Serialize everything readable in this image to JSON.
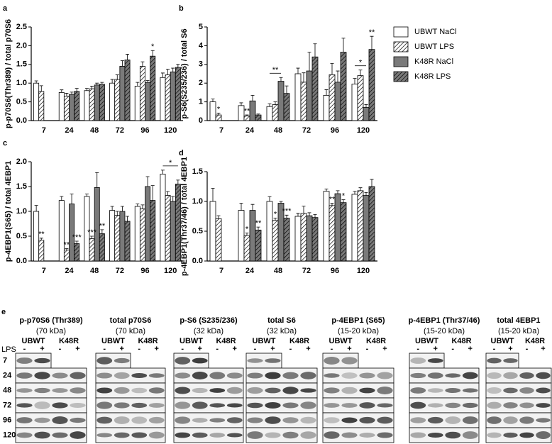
{
  "chart_data": [
    {
      "type": "bar",
      "label": "a",
      "y_label": "p-p70S6(Thr389) / total p70S6",
      "categories": [
        "7",
        "24",
        "48",
        "72",
        "96",
        "120"
      ],
      "series": [
        {
          "name": "UBWT NaCl",
          "color": "#ffffff",
          "hatch": false,
          "values": [
            1.0,
            0.75,
            0.8,
            1.0,
            0.92,
            1.15
          ],
          "errors": [
            0.06,
            0.07,
            0.06,
            0.1,
            0.1,
            0.12
          ]
        },
        {
          "name": "UBWT LPS",
          "color": "#ffffff",
          "hatch": true,
          "values": [
            0.78,
            0.65,
            0.85,
            1.1,
            1.45,
            1.22
          ],
          "errors": [
            0.15,
            0.08,
            0.07,
            0.12,
            0.12,
            0.15
          ]
        },
        {
          "name": "K48R NaCl",
          "color": "#7a7a7a",
          "hatch": false,
          "values": [
            null,
            0.7,
            0.95,
            1.45,
            1.02,
            1.3
          ],
          "errors": [
            null,
            0.06,
            0.05,
            0.15,
            0.05,
            0.1
          ]
        },
        {
          "name": "K48R LPS",
          "color": "#7a7a7a",
          "hatch": true,
          "values": [
            null,
            0.78,
            0.97,
            1.62,
            1.72,
            1.42
          ],
          "errors": [
            null,
            0.08,
            0.05,
            0.15,
            0.15,
            0.08
          ]
        }
      ],
      "ylim": [
        0,
        2.5
      ],
      "yticks": [
        {
          "value": 0,
          "label": "0.0"
        },
        0.5,
        {
          "value": 1,
          "label": "1.0"
        },
        1.5,
        {
          "value": 2,
          "label": "2.0"
        },
        2.5
      ],
      "annotations": [
        {
          "text": "*",
          "category": "96",
          "series": [
            "K48R LPS"
          ]
        }
      ]
    },
    {
      "type": "bar",
      "label": "b",
      "y_label": "p-S6(S235/236) / total S6",
      "legend": "right",
      "categories": [
        "7",
        "24",
        "48",
        "72",
        "96",
        "120"
      ],
      "series": [
        {
          "name": "UBWT NaCl",
          "color": "#ffffff",
          "hatch": false,
          "values": [
            1.0,
            0.8,
            0.75,
            2.5,
            1.35,
            1.95
          ],
          "errors": [
            0.15,
            0.15,
            0.15,
            0.3,
            0.3,
            0.3
          ]
        },
        {
          "name": "UBWT LPS",
          "color": "#ffffff",
          "hatch": true,
          "values": [
            0.3,
            0.25,
            0.85,
            2.05,
            2.45,
            2.4
          ],
          "errors": [
            0.1,
            0.05,
            0.15,
            0.5,
            0.6,
            0.3
          ]
        },
        {
          "name": "K48R NaCl",
          "color": "#7a7a7a",
          "hatch": false,
          "values": [
            null,
            1.05,
            2.1,
            2.65,
            2.05,
            0.7
          ],
          "errors": [
            null,
            0.3,
            0.2,
            1.0,
            0.6,
            0.15
          ]
        },
        {
          "name": "K48R LPS",
          "color": "#7a7a7a",
          "hatch": true,
          "values": [
            null,
            0.3,
            1.45,
            3.4,
            3.65,
            3.8
          ],
          "errors": [
            null,
            0.05,
            0.4,
            0.7,
            0.75,
            0.7
          ]
        }
      ],
      "ylim": [
        0,
        5
      ],
      "yticks": [
        0,
        1,
        2,
        3,
        4,
        5
      ],
      "annotations": [
        {
          "text": "*",
          "category": "7",
          "series": [
            "UBWT LPS"
          ]
        },
        {
          "text": "**",
          "category": "24",
          "series": [
            "UBWT LPS"
          ]
        },
        {
          "text": "**",
          "category": "48",
          "series": [
            "UBWT NaCl",
            "K48R NaCl"
          ]
        },
        {
          "text": "*",
          "category": "120",
          "series": [
            "UBWT NaCl",
            "K48R NaCl"
          ]
        },
        {
          "text": "**",
          "category": "120",
          "series": [
            "K48R LPS"
          ]
        }
      ]
    },
    {
      "type": "bar",
      "label": "c",
      "y_label": "p-4EBP1(S65) / total 4EBP1",
      "categories": [
        "7",
        "24",
        "48",
        "72",
        "96",
        "120"
      ],
      "series": [
        {
          "name": "UBWT NaCl",
          "color": "#ffffff",
          "hatch": false,
          "values": [
            1.0,
            1.22,
            1.3,
            1.02,
            1.1,
            1.75
          ],
          "errors": [
            0.12,
            0.08,
            0.05,
            0.08,
            0.05,
            0.08
          ]
        },
        {
          "name": "UBWT LPS",
          "color": "#ffffff",
          "hatch": true,
          "values": [
            0.42,
            0.22,
            0.45,
            0.92,
            1.05,
            1.32
          ],
          "errors": [
            0.04,
            0.03,
            0.05,
            0.08,
            0.08,
            0.08
          ]
        },
        {
          "name": "K48R NaCl",
          "color": "#7a7a7a",
          "hatch": false,
          "values": [
            null,
            1.15,
            1.48,
            1.0,
            1.5,
            1.2
          ],
          "errors": [
            null,
            0.2,
            0.3,
            0.1,
            0.2,
            0.1
          ]
        },
        {
          "name": "K48R LPS",
          "color": "#7a7a7a",
          "hatch": true,
          "values": [
            null,
            0.35,
            0.55,
            0.8,
            1.22,
            1.55
          ],
          "errors": [
            null,
            0.05,
            0.08,
            0.1,
            0.3,
            0.08
          ]
        }
      ],
      "ylim": [
        0,
        2
      ],
      "yticks": [
        {
          "value": 0,
          "label": "0.0"
        },
        0.5,
        {
          "value": 1,
          "label": "1.0"
        },
        1.5,
        {
          "value": 2,
          "label": "2.0"
        }
      ],
      "annotations": [
        {
          "text": "**",
          "category": "7",
          "series": [
            "UBWT LPS"
          ]
        },
        {
          "text": "**",
          "category": "24",
          "series": [
            "UBWT LPS"
          ]
        },
        {
          "text": "***",
          "category": "24",
          "series": [
            "K48R LPS"
          ]
        },
        {
          "text": "***",
          "category": "48",
          "series": [
            "UBWT LPS"
          ]
        },
        {
          "text": "**",
          "category": "48",
          "series": [
            "K48R LPS"
          ]
        },
        {
          "text": "*",
          "category": "120",
          "series": [
            "UBWT NaCl",
            "K48R LPS"
          ]
        }
      ]
    },
    {
      "type": "bar",
      "label": "d",
      "y_label": "p-4EBP1(Thr37/46) / total 4EBP1",
      "categories": [
        "7",
        "24",
        "48",
        "72",
        "96",
        "120"
      ],
      "series": [
        {
          "name": "UBWT NaCl",
          "color": "#ffffff",
          "hatch": false,
          "values": [
            1.0,
            0.85,
            1.0,
            0.75,
            1.17,
            1.12
          ],
          "errors": [
            0.22,
            0.12,
            0.08,
            0.05,
            0.04,
            0.05
          ]
        },
        {
          "name": "UBWT LPS",
          "color": "#ffffff",
          "hatch": true,
          "values": [
            0.71,
            0.43,
            0.68,
            0.8,
            0.93,
            1.18
          ],
          "errors": [
            0.05,
            0.04,
            0.04,
            0.12,
            0.04,
            0.05
          ]
        },
        {
          "name": "K48R NaCl",
          "color": "#7a7a7a",
          "hatch": false,
          "values": [
            null,
            0.85,
            0.97,
            0.76,
            1.13,
            1.1
          ],
          "errors": [
            null,
            0.1,
            0.03,
            0.05,
            0.05,
            0.05
          ]
        },
        {
          "name": "K48R LPS",
          "color": "#7a7a7a",
          "hatch": true,
          "values": [
            null,
            0.52,
            0.72,
            0.73,
            0.98,
            1.25
          ],
          "errors": [
            null,
            0.05,
            0.05,
            0.05,
            0.05,
            0.12
          ]
        }
      ],
      "ylim": [
        0,
        1.5
      ],
      "yticks": [
        {
          "value": 0,
          "label": "0.0"
        },
        0.5,
        {
          "value": 1,
          "label": "1.0"
        },
        1.5
      ],
      "annotations": [
        {
          "text": "*",
          "category": "24",
          "series": [
            "UBWT LPS"
          ]
        },
        {
          "text": "**",
          "category": "24",
          "series": [
            "K48R LPS"
          ]
        },
        {
          "text": "*",
          "category": "48",
          "series": [
            "UBWT LPS"
          ]
        },
        {
          "text": "***",
          "category": "48",
          "series": [
            "K48R LPS"
          ]
        },
        {
          "text": "**",
          "category": "96",
          "series": [
            "UBWT LPS"
          ]
        },
        {
          "text": "*",
          "category": "96",
          "series": [
            "K48R LPS"
          ]
        }
      ]
    }
  ],
  "blots": {
    "label": "e",
    "lps": "LPS",
    "rows": [
      "7",
      "24",
      "48",
      "72",
      "96",
      "120"
    ],
    "groups": [
      "UBWT",
      "K48R"
    ],
    "treatments": [
      "-",
      "+"
    ],
    "panels": [
      {
        "title": "p-p70S6 (Thr389)",
        "size": "(70 kDa)"
      },
      {
        "title": "total p70S6",
        "size": "(70 kDa)"
      },
      {
        "title": "p-S6 (S235/236)",
        "size": "(32 kDa)"
      },
      {
        "title": "total S6",
        "size": "(32 kDa)"
      },
      {
        "title": "p-4EBP1 (S65)",
        "size": "(15-20 kDa)"
      },
      {
        "title": "p-4EBP1 (Thr37/46)",
        "size": "(15-20 kDa)"
      },
      {
        "title": "total 4EBP1",
        "size": "(15-20 kDa)"
      }
    ]
  }
}
